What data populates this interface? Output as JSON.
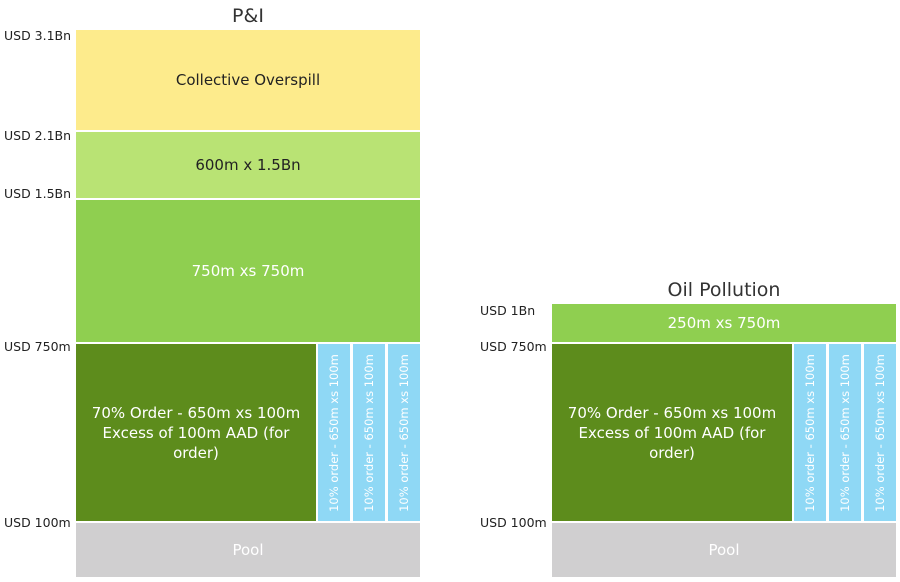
{
  "left": {
    "title": "P&I",
    "axis": [
      "USD 3.1Bn",
      "USD 2.1Bn",
      "USD 1.5Bn",
      "USD 750m",
      "USD 100m"
    ],
    "layers": {
      "collective": "Collective Overspill",
      "l600": "600m x 1.5Bn",
      "l750": "750m xs 750m",
      "order": "70% Order - 650m xs 100m Excess of 100m AAD (for order)",
      "strip": "10% order - 650m xs 100m",
      "pool": "Pool"
    }
  },
  "right": {
    "title": "Oil Pollution",
    "axis": [
      "USD 1Bn",
      "USD 750m",
      "USD 100m"
    ],
    "layers": {
      "l250": "250m xs 750m",
      "order": "70% Order - 650m xs 100m Excess of 100m AAD (for order)",
      "strip": "10% order - 650m xs 100m",
      "pool": "Pool"
    }
  },
  "colors": {
    "collective": "#fdeb8c",
    "light_green": "#b9e374",
    "mid_green": "#8fcf50",
    "dark_green": "#5d8c1c",
    "strip_blue": "#8fd8f5",
    "pool_grey": "#d0cfd0"
  }
}
